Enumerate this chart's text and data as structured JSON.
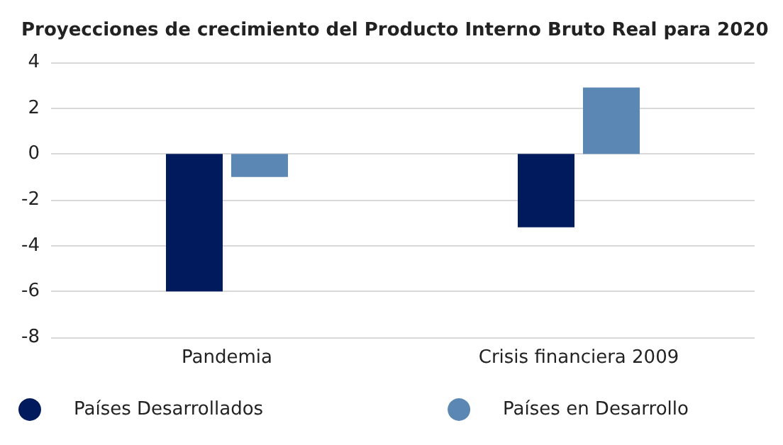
{
  "chart_data": {
    "type": "bar",
    "title": "Proyecciones de crecimiento del Producto Interno Bruto Real para 2020",
    "categories": [
      "Pandemia",
      "Crisis financiera 2009"
    ],
    "series": [
      {
        "name": "Países Desarrollados",
        "color": "#001a5e",
        "values": [
          -6.0,
          -3.2
        ]
      },
      {
        "name": "Países en Desarrollo",
        "color": "#5b87b5",
        "values": [
          -1.0,
          2.9
        ]
      }
    ],
    "ylim": [
      -8,
      4
    ],
    "yticks": [
      -8,
      -6,
      -4,
      -2,
      0,
      2,
      4
    ],
    "grid": "y",
    "legend": "bottom"
  }
}
